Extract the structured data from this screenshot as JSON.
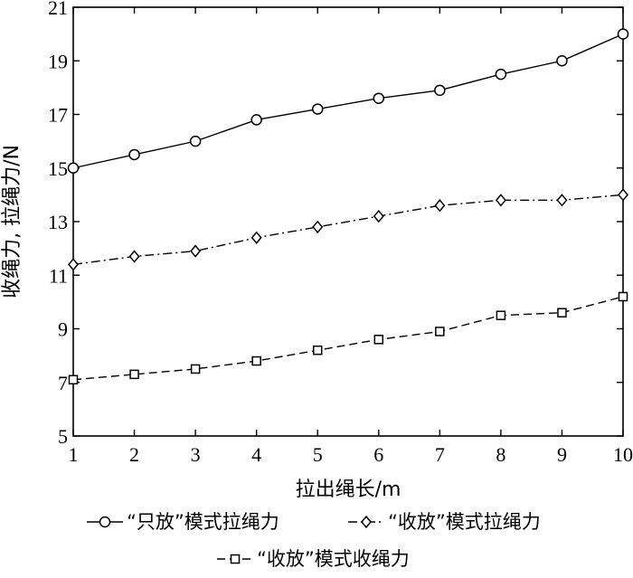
{
  "chart_data": {
    "type": "line",
    "xlabel": "拉出绳长/m",
    "ylabel": "收绳力, 拉绳力/N",
    "x": [
      1,
      2,
      3,
      4,
      5,
      6,
      7,
      8,
      9,
      10
    ],
    "xlim": [
      1,
      10
    ],
    "ylim": [
      5,
      21
    ],
    "xticks": [
      "1",
      "2",
      "3",
      "4",
      "5",
      "6",
      "7",
      "8",
      "9",
      "10"
    ],
    "yticks": [
      "5",
      "7",
      "9",
      "11",
      "13",
      "15",
      "17",
      "19",
      "21"
    ],
    "grid": false,
    "legend_position": "bottom",
    "series": [
      {
        "name": "“只放”模式拉绳力",
        "marker": "circle",
        "line_style": "solid",
        "values": [
          15.0,
          15.5,
          16.0,
          16.8,
          17.2,
          17.6,
          17.9,
          18.5,
          19.0,
          20.0
        ]
      },
      {
        "name": "“收放”模式拉绳力",
        "marker": "diamond",
        "line_style": "dashdot",
        "values": [
          11.4,
          11.7,
          11.9,
          12.4,
          12.8,
          13.2,
          13.6,
          13.8,
          13.8,
          14.0
        ]
      },
      {
        "name": "“收放”模式收绳力",
        "marker": "square",
        "line_style": "dashed",
        "values": [
          7.1,
          7.3,
          7.5,
          7.8,
          8.2,
          8.6,
          8.9,
          9.5,
          9.6,
          10.2
        ]
      }
    ],
    "color": "#000000"
  }
}
